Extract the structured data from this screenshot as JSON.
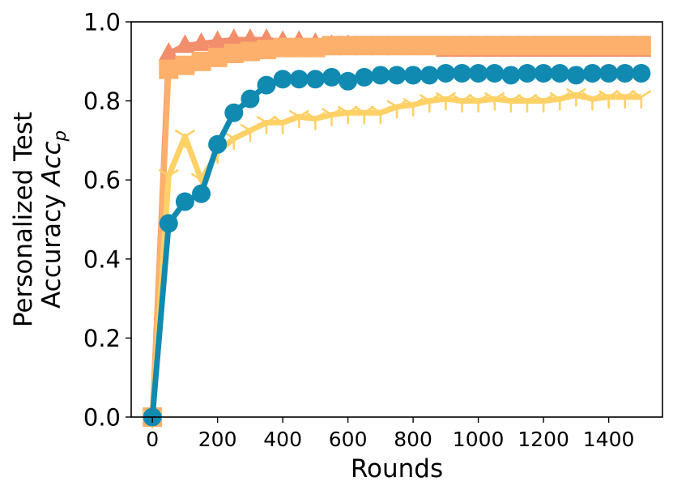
{
  "chart_data": {
    "type": "line",
    "title": "",
    "xlabel": "Rounds",
    "ylabel_line1": "Personalized Test",
    "ylabel_line2_prefix": "Accuracy ",
    "ylabel_symbol": "Acc",
    "ylabel_subscript": "p",
    "xlim": [
      -65,
      1565
    ],
    "ylim": [
      0.0,
      1.0
    ],
    "xticks": [
      0,
      200,
      400,
      600,
      800,
      1000,
      1200,
      1400
    ],
    "xtick_labels": [
      "0",
      "200",
      "400",
      "600",
      "800",
      "1000",
      "1200",
      "1400"
    ],
    "yticks": [
      0.0,
      0.2,
      0.4,
      0.6,
      0.8,
      1.0
    ],
    "ytick_labels": [
      "0.0",
      "0.2",
      "0.4",
      "0.6",
      "0.8",
      "1.0"
    ],
    "grid": false,
    "x": [
      0,
      50,
      100,
      150,
      200,
      250,
      300,
      350,
      400,
      450,
      500,
      550,
      600,
      650,
      700,
      750,
      800,
      850,
      900,
      950,
      1000,
      1050,
      1100,
      1150,
      1200,
      1250,
      1300,
      1350,
      1400,
      1450,
      1500
    ],
    "series": [
      {
        "marker": "triangle",
        "color": "#f28e6b",
        "values": [
          0.0,
          0.92,
          0.94,
          0.945,
          0.95,
          0.955,
          0.955,
          0.955,
          0.95,
          0.95,
          0.945,
          0.94,
          0.94,
          0.935,
          0.935,
          0.935,
          0.935,
          0.935,
          0.93,
          0.93,
          0.93,
          0.93,
          0.93,
          0.93,
          0.93,
          0.93,
          0.93,
          0.93,
          0.93,
          0.93,
          0.93
        ]
      },
      {
        "marker": "square",
        "color": "#fdb06b",
        "values": [
          0.0,
          0.88,
          0.89,
          0.9,
          0.91,
          0.92,
          0.925,
          0.93,
          0.935,
          0.935,
          0.935,
          0.94,
          0.94,
          0.94,
          0.94,
          0.94,
          0.94,
          0.94,
          0.94,
          0.94,
          0.94,
          0.94,
          0.94,
          0.94,
          0.94,
          0.94,
          0.94,
          0.94,
          0.94,
          0.94,
          0.94
        ]
      },
      {
        "marker": "tri",
        "color": "#ffd166",
        "values": [
          0.0,
          0.61,
          0.71,
          0.6,
          0.67,
          0.705,
          0.725,
          0.745,
          0.745,
          0.76,
          0.755,
          0.765,
          0.77,
          0.77,
          0.77,
          0.785,
          0.79,
          0.8,
          0.805,
          0.8,
          0.8,
          0.805,
          0.8,
          0.8,
          0.8,
          0.805,
          0.815,
          0.805,
          0.81,
          0.81,
          0.81
        ]
      },
      {
        "marker": "circle",
        "color": "#118ab2",
        "values": [
          0.0,
          0.49,
          0.545,
          0.565,
          0.69,
          0.77,
          0.805,
          0.84,
          0.855,
          0.855,
          0.855,
          0.86,
          0.85,
          0.86,
          0.865,
          0.865,
          0.865,
          0.865,
          0.87,
          0.87,
          0.87,
          0.87,
          0.865,
          0.87,
          0.87,
          0.87,
          0.865,
          0.87,
          0.87,
          0.87,
          0.87
        ]
      }
    ]
  }
}
